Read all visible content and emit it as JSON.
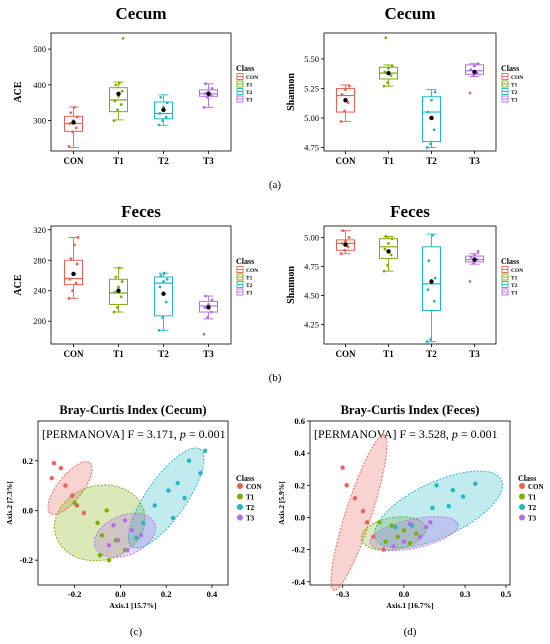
{
  "colors": {
    "CON": "#E8625A",
    "T1": "#7CAE00",
    "T2": "#1FB8C4",
    "T3": "#B46CE8"
  },
  "legend_title": "Class",
  "classes": [
    "CON",
    "T1",
    "T2",
    "T3"
  ],
  "panel_labels": [
    "(a)",
    "(b)",
    "(c)",
    "(d)"
  ],
  "chart_data": [
    {
      "type": "box",
      "title": "Cecum",
      "ylabel": "ACE",
      "xlabel": "",
      "categories": [
        "CON",
        "T1",
        "T2",
        "T3"
      ],
      "ylim": [
        215,
        545
      ],
      "yticks": [
        300,
        400,
        500
      ],
      "legend": "right",
      "boxes": [
        {
          "q1": 270,
          "median": 292,
          "q3": 312,
          "wlow": 225,
          "whigh": 338,
          "mean": 295,
          "points": [
            228,
            268,
            280,
            292,
            300,
            310,
            322,
            337
          ]
        },
        {
          "q1": 325,
          "median": 358,
          "q3": 392,
          "wlow": 302,
          "whigh": 408,
          "mean": 375,
          "points": [
            300,
            330,
            345,
            355,
            368,
            382,
            400,
            405,
            530
          ]
        },
        {
          "q1": 305,
          "median": 320,
          "q3": 352,
          "wlow": 287,
          "whigh": 372,
          "mean": 330,
          "points": [
            288,
            300,
            310,
            320,
            338,
            350,
            365
          ]
        },
        {
          "q1": 368,
          "median": 375,
          "q3": 386,
          "wlow": 337,
          "whigh": 403,
          "mean": 375,
          "points": [
            337,
            365,
            372,
            376,
            380,
            390,
            403
          ]
        }
      ]
    },
    {
      "type": "box",
      "title": "Cecum",
      "ylabel": "Shannon",
      "xlabel": "",
      "categories": [
        "CON",
        "T1",
        "T2",
        "T3"
      ],
      "ylim": [
        4.72,
        5.72
      ],
      "yticks": [
        4.75,
        5.0,
        5.25,
        5.5
      ],
      "legend": "right",
      "boxes": [
        {
          "q1": 5.05,
          "median": 5.19,
          "q3": 5.25,
          "wlow": 4.97,
          "whigh": 5.28,
          "mean": 5.15,
          "points": [
            4.97,
            5.06,
            5.13,
            5.2,
            5.24,
            5.27
          ]
        },
        {
          "q1": 5.33,
          "median": 5.38,
          "q3": 5.43,
          "wlow": 5.27,
          "whigh": 5.45,
          "mean": 5.38,
          "points": [
            5.27,
            5.3,
            5.36,
            5.39,
            5.42,
            5.44,
            5.68
          ]
        },
        {
          "q1": 4.8,
          "median": 5.05,
          "q3": 5.18,
          "wlow": 4.75,
          "whigh": 5.24,
          "mean": 5.0,
          "points": [
            4.75,
            4.78,
            4.9,
            5.05,
            5.15,
            5.22
          ]
        },
        {
          "q1": 5.37,
          "median": 5.4,
          "q3": 5.45,
          "wlow": 5.35,
          "whigh": 5.46,
          "mean": 5.39,
          "points": [
            5.21,
            5.36,
            5.38,
            5.41,
            5.44,
            5.46
          ]
        }
      ]
    },
    {
      "type": "box",
      "title": "Feces",
      "ylabel": "ACE",
      "xlabel": "",
      "categories": [
        "CON",
        "T1",
        "T2",
        "T3"
      ],
      "ylim": [
        170,
        325
      ],
      "yticks": [
        200,
        240,
        280,
        320
      ],
      "legend": "right",
      "boxes": [
        {
          "q1": 248,
          "median": 256,
          "q3": 280,
          "wlow": 230,
          "whigh": 310,
          "mean": 262,
          "points": [
            230,
            240,
            250,
            255,
            262,
            275,
            282,
            300,
            310
          ]
        },
        {
          "q1": 222,
          "median": 237,
          "q3": 255,
          "wlow": 212,
          "whigh": 270,
          "mean": 240,
          "points": [
            212,
            218,
            232,
            238,
            245,
            252,
            258,
            270
          ]
        },
        {
          "q1": 207,
          "median": 250,
          "q3": 258,
          "wlow": 188,
          "whigh": 263,
          "mean": 236,
          "points": [
            188,
            205,
            225,
            245,
            252,
            255,
            260,
            263
          ]
        },
        {
          "q1": 212,
          "median": 220,
          "q3": 226,
          "wlow": 203,
          "whigh": 233,
          "mean": 218,
          "points": [
            183,
            205,
            212,
            218,
            222,
            228,
            233
          ]
        }
      ]
    },
    {
      "type": "box",
      "title": "Feces",
      "ylabel": "Shannon",
      "xlabel": "",
      "categories": [
        "CON",
        "T1",
        "T2",
        "T3"
      ],
      "ylim": [
        4.08,
        5.1
      ],
      "yticks": [
        4.25,
        4.5,
        4.75,
        5.0
      ],
      "legend": "right",
      "boxes": [
        {
          "q1": 4.89,
          "median": 4.95,
          "q3": 4.98,
          "wlow": 4.86,
          "whigh": 5.06,
          "mean": 4.94,
          "points": [
            4.86,
            4.89,
            4.92,
            4.95,
            4.97,
            5.0,
            5.06
          ]
        },
        {
          "q1": 4.82,
          "median": 4.92,
          "q3": 4.99,
          "wlow": 4.71,
          "whigh": 5.01,
          "mean": 4.88,
          "points": [
            4.71,
            4.76,
            4.85,
            4.9,
            4.95,
            4.99,
            5.01
          ]
        },
        {
          "q1": 4.37,
          "median": 4.6,
          "q3": 4.92,
          "wlow": 4.1,
          "whigh": 5.03,
          "mean": 4.62,
          "points": [
            4.1,
            4.12,
            4.45,
            4.55,
            4.63,
            4.65,
            4.8,
            5.02
          ]
        },
        {
          "q1": 4.79,
          "median": 4.81,
          "q3": 4.84,
          "wlow": 4.77,
          "whigh": 4.86,
          "mean": 4.81,
          "points": [
            4.62,
            4.78,
            4.81,
            4.83,
            4.85,
            4.88
          ]
        }
      ]
    },
    {
      "type": "scatter",
      "title": "Bray-Curtis Index (Cecum)",
      "annotation_pre": "[PERMANOVA] F = 3.171, ",
      "annotation_p": "p",
      "annotation_post": " = 0.001",
      "xlabel": "Axis.1 [15.7%]",
      "ylabel": "Axis.2 [7.3%]",
      "xlim": [
        -0.36,
        0.47
      ],
      "ylim": [
        -0.3,
        0.36
      ],
      "xticks": [
        -0.2,
        0.0,
        0.2,
        0.4
      ],
      "yticks": [
        -0.2,
        0.0,
        0.2
      ],
      "legend": "right",
      "groups": [
        {
          "name": "CON",
          "points": [
            [
              -0.29,
              0.19
            ],
            [
              -0.26,
              0.17
            ],
            [
              -0.3,
              0.13
            ],
            [
              -0.24,
              0.1
            ],
            [
              -0.21,
              0.06
            ],
            [
              -0.19,
              0.02
            ],
            [
              -0.16,
              -0.01
            ]
          ],
          "ellipse": {
            "cx": -0.22,
            "cy": 0.09,
            "rx": 0.14,
            "ry": 0.05,
            "angle": -52
          }
        },
        {
          "name": "T1",
          "points": [
            [
              -0.2,
              0.03
            ],
            [
              -0.06,
              0.0
            ],
            [
              -0.1,
              -0.05
            ],
            [
              -0.08,
              -0.1
            ],
            [
              -0.02,
              -0.12
            ],
            [
              -0.09,
              -0.18
            ],
            [
              -0.05,
              -0.2
            ],
            [
              0.02,
              -0.16
            ]
          ],
          "ellipse": {
            "cx": -0.09,
            "cy": -0.05,
            "rx": 0.2,
            "ry": 0.15,
            "angle": -15
          }
        },
        {
          "name": "T2",
          "points": [
            [
              0.37,
              0.24
            ],
            [
              0.3,
              0.2
            ],
            [
              0.35,
              0.15
            ],
            [
              0.25,
              0.11
            ],
            [
              0.21,
              0.08
            ],
            [
              0.28,
              0.05
            ],
            [
              0.15,
              0.02
            ],
            [
              0.23,
              -0.03
            ],
            [
              0.1,
              -0.05
            ],
            [
              0.07,
              -0.11
            ]
          ],
          "ellipse": {
            "cx": 0.2,
            "cy": 0.05,
            "rx": 0.26,
            "ry": 0.08,
            "angle": -55
          }
        },
        {
          "name": "T3",
          "points": [
            [
              0.02,
              -0.04
            ],
            [
              -0.03,
              -0.06
            ],
            [
              0.05,
              -0.08
            ],
            [
              0.09,
              -0.1
            ],
            [
              -0.01,
              -0.12
            ],
            [
              -0.05,
              -0.14
            ],
            [
              0.03,
              -0.16
            ]
          ],
          "ellipse": {
            "cx": 0.02,
            "cy": -0.1,
            "rx": 0.14,
            "ry": 0.08,
            "angle": -22
          }
        }
      ]
    },
    {
      "type": "scatter",
      "title": "Bray-Curtis Index (Feces)",
      "annotation_pre": "[PERMANOVA] F = 3.528, ",
      "annotation_p": "p",
      "annotation_post": " = 0.001",
      "xlabel": "Axis.1 [16.7%]",
      "ylabel": "Axis.2 [5.9%]",
      "xlim": [
        -0.46,
        0.52
      ],
      "ylim": [
        -0.42,
        0.6
      ],
      "xticks": [
        -0.3,
        0.0,
        0.3,
        0.5
      ],
      "yticks": [
        -0.4,
        -0.2,
        0.0,
        0.2,
        0.4,
        0.6
      ],
      "legend": "right",
      "groups": [
        {
          "name": "CON",
          "points": [
            [
              -0.3,
              0.31
            ],
            [
              -0.28,
              0.2
            ],
            [
              -0.24,
              0.12
            ],
            [
              -0.2,
              0.04
            ],
            [
              -0.18,
              -0.03
            ],
            [
              -0.15,
              -0.12
            ],
            [
              -0.1,
              -0.2
            ]
          ],
          "ellipse": {
            "cx": -0.22,
            "cy": 0.03,
            "rx": 0.4,
            "ry": 0.08,
            "angle": -72
          }
        },
        {
          "name": "T1",
          "points": [
            [
              -0.12,
              -0.03
            ],
            [
              -0.06,
              -0.05
            ],
            [
              0.0,
              -0.08
            ],
            [
              0.06,
              -0.1
            ],
            [
              -0.03,
              -0.12
            ],
            [
              -0.09,
              -0.15
            ],
            [
              0.03,
              -0.16
            ]
          ],
          "ellipse": {
            "cx": -0.05,
            "cy": -0.1,
            "rx": 0.16,
            "ry": 0.1,
            "angle": -10
          }
        },
        {
          "name": "T2",
          "points": [
            [
              0.35,
              0.21
            ],
            [
              0.24,
              0.17
            ],
            [
              0.16,
              0.2
            ],
            [
              0.29,
              0.13
            ],
            [
              0.14,
              0.06
            ],
            [
              0.04,
              -0.05
            ],
            [
              -0.04,
              -0.06
            ],
            [
              0.22,
              0.07
            ]
          ],
          "ellipse": {
            "cx": 0.17,
            "cy": 0.05,
            "rx": 0.34,
            "ry": 0.17,
            "angle": -25
          }
        },
        {
          "name": "T3",
          "points": [
            [
              0.11,
              -0.06
            ],
            [
              0.13,
              -0.03
            ],
            [
              0.08,
              -0.12
            ],
            [
              0.0,
              -0.15
            ],
            [
              -0.05,
              -0.18
            ],
            [
              0.03,
              -0.04
            ]
          ],
          "ellipse": {
            "cx": 0.05,
            "cy": -0.1,
            "rx": 0.22,
            "ry": 0.09,
            "angle": -12
          }
        }
      ]
    }
  ]
}
